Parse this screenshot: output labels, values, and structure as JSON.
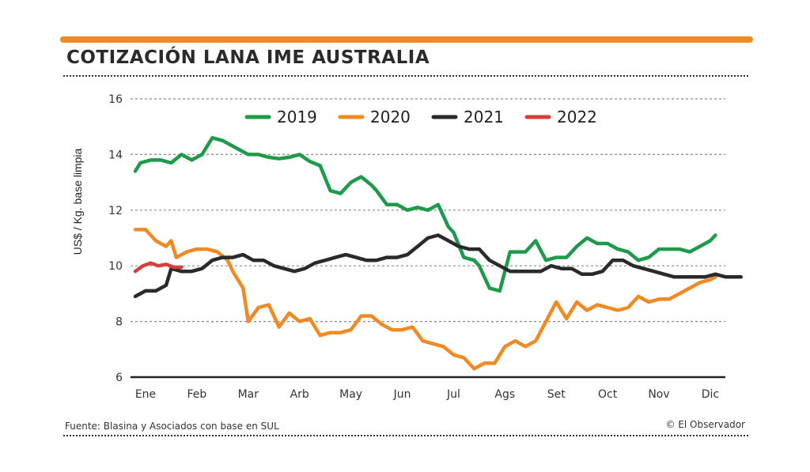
{
  "header": {
    "title": "COTIZACIÓN LANA IME AUSTRALIA",
    "accent_color": "#f08a24"
  },
  "footer": {
    "source": "Fuente: Blasina y Asociados con base en SUL",
    "credit": "© El Observador"
  },
  "chart_data": {
    "type": "line",
    "title": "COTIZACIÓN LANA IME AUSTRALIA",
    "xlabel": "",
    "ylabel": "US$ / Kg. base limpia",
    "ylim": [
      6,
      16
    ],
    "yticks": [
      "16",
      "14",
      "12",
      "10",
      "8",
      "6"
    ],
    "categories": [
      "Ene",
      "Feb",
      "Mar",
      "Arb",
      "May",
      "Jun",
      "Jul",
      "Ags",
      "Set",
      "Oct",
      "Nov",
      "Dic"
    ],
    "xlim": [
      0,
      11.6
    ],
    "grid": true,
    "legend": "top",
    "series": [
      {
        "name": "2019",
        "color": "#1e9a4b",
        "x": [
          -0.2,
          -0.1,
          0.1,
          0.3,
          0.5,
          0.7,
          0.9,
          1.1,
          1.3,
          1.5,
          1.6,
          1.8,
          2.0,
          2.2,
          2.4,
          2.6,
          2.8,
          3.0,
          3.2,
          3.4,
          3.6,
          3.8,
          4.0,
          4.2,
          4.4,
          4.5,
          4.7,
          4.9,
          5.1,
          5.3,
          5.5,
          5.7,
          5.9,
          6.0,
          6.2,
          6.4,
          6.5,
          6.7,
          6.9,
          7.1,
          7.2,
          7.4,
          7.6,
          7.8,
          8.0,
          8.2,
          8.4,
          8.6,
          8.8,
          9.0,
          9.2,
          9.4,
          9.6,
          9.8,
          10.0,
          10.2,
          10.4,
          10.6,
          10.8,
          11.0,
          11.1
        ],
        "values": [
          13.4,
          13.7,
          13.8,
          13.8,
          13.7,
          14.0,
          13.8,
          14.0,
          14.6,
          14.5,
          14.4,
          14.2,
          14.0,
          14.0,
          13.9,
          13.85,
          13.9,
          14.0,
          13.75,
          13.6,
          12.7,
          12.6,
          13.0,
          13.2,
          12.9,
          12.7,
          12.2,
          12.2,
          12.0,
          12.1,
          12.0,
          12.2,
          11.4,
          11.2,
          10.3,
          10.2,
          10.0,
          9.2,
          9.1,
          10.5,
          10.5,
          10.5,
          10.9,
          10.2,
          10.3,
          10.3,
          10.7,
          11.0,
          10.8,
          10.8,
          10.6,
          10.5,
          10.2,
          10.3,
          10.6,
          10.6,
          10.6,
          10.5,
          10.7,
          10.9,
          11.1
        ]
      },
      {
        "name": "2020",
        "color": "#f08a24",
        "x": [
          -0.2,
          0.0,
          0.2,
          0.4,
          0.5,
          0.6,
          0.8,
          1.0,
          1.2,
          1.4,
          1.6,
          1.7,
          1.9,
          2.0,
          2.2,
          2.4,
          2.6,
          2.8,
          3.0,
          3.2,
          3.4,
          3.6,
          3.8,
          4.0,
          4.2,
          4.4,
          4.6,
          4.8,
          5.0,
          5.2,
          5.4,
          5.6,
          5.8,
          6.0,
          6.2,
          6.4,
          6.6,
          6.8,
          7.0,
          7.2,
          7.4,
          7.6,
          7.8,
          8.0,
          8.2,
          8.4,
          8.6,
          8.8,
          9.0,
          9.2,
          9.4,
          9.6,
          9.8,
          10.0,
          10.2,
          10.4,
          10.6,
          10.8,
          11.0,
          11.1
        ],
        "values": [
          11.3,
          11.3,
          10.9,
          10.7,
          10.9,
          10.3,
          10.5,
          10.6,
          10.6,
          10.5,
          10.2,
          9.8,
          9.2,
          8.0,
          8.5,
          8.6,
          7.8,
          8.3,
          8.0,
          8.1,
          7.5,
          7.6,
          7.6,
          7.7,
          8.2,
          8.2,
          7.9,
          7.7,
          7.7,
          7.8,
          7.3,
          7.2,
          7.1,
          6.8,
          6.7,
          6.3,
          6.5,
          6.5,
          7.1,
          7.3,
          7.1,
          7.3,
          8.0,
          8.7,
          8.1,
          8.7,
          8.4,
          8.6,
          8.5,
          8.4,
          8.5,
          8.9,
          8.7,
          8.8,
          8.8,
          9.0,
          9.2,
          9.4,
          9.5,
          9.6
        ]
      },
      {
        "name": "2021",
        "color": "#2a2a2a",
        "x": [
          -0.2,
          0.0,
          0.2,
          0.4,
          0.5,
          0.7,
          0.9,
          1.1,
          1.3,
          1.5,
          1.7,
          1.9,
          2.1,
          2.3,
          2.5,
          2.7,
          2.9,
          3.1,
          3.3,
          3.5,
          3.7,
          3.9,
          4.1,
          4.3,
          4.5,
          4.7,
          4.9,
          5.1,
          5.3,
          5.5,
          5.7,
          5.9,
          6.1,
          6.3,
          6.5,
          6.7,
          6.9,
          7.1,
          7.3,
          7.5,
          7.7,
          7.9,
          8.1,
          8.3,
          8.5,
          8.7,
          8.9,
          9.1,
          9.3,
          9.5,
          9.7,
          9.9,
          10.1,
          10.3,
          10.5,
          10.7,
          10.9,
          11.1,
          11.3,
          11.6
        ],
        "values": [
          8.9,
          9.1,
          9.1,
          9.3,
          9.9,
          9.8,
          9.8,
          9.9,
          10.2,
          10.3,
          10.3,
          10.4,
          10.2,
          10.2,
          10.0,
          9.9,
          9.8,
          9.9,
          10.1,
          10.2,
          10.3,
          10.4,
          10.3,
          10.2,
          10.2,
          10.3,
          10.3,
          10.4,
          10.7,
          11.0,
          11.1,
          10.9,
          10.7,
          10.6,
          10.6,
          10.2,
          10.0,
          9.8,
          9.8,
          9.8,
          9.8,
          10.0,
          9.9,
          9.9,
          9.7,
          9.7,
          9.8,
          10.2,
          10.2,
          10.0,
          9.9,
          9.8,
          9.7,
          9.6,
          9.6,
          9.6,
          9.6,
          9.7,
          9.6,
          9.6
        ]
      },
      {
        "name": "2022",
        "color": "#d6403b",
        "x": [
          -0.2,
          -0.05,
          0.1,
          0.25,
          0.4,
          0.55,
          0.7
        ],
        "values": [
          9.8,
          10.0,
          10.1,
          10.0,
          10.05,
          9.95,
          9.95
        ]
      }
    ]
  }
}
